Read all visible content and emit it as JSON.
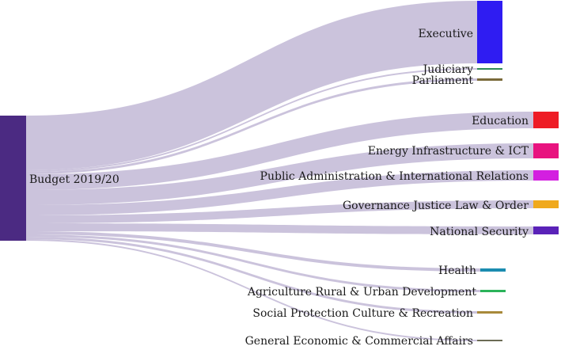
{
  "source": {
    "label": "Budget 2019/20",
    "color": "#4b2a82"
  },
  "targets": [
    {
      "key": "executive",
      "label": "Executive",
      "color": "#2f1cf2"
    },
    {
      "key": "judiciary",
      "label": "Judiciary",
      "color": "#2e8b57"
    },
    {
      "key": "parliament",
      "label": "Parliament",
      "color": "#7a6a3a"
    },
    {
      "key": "education",
      "label": "Education",
      "color": "#ee1c25"
    },
    {
      "key": "energy",
      "label": "Energy Infrastructure & ICT",
      "color": "#e8137f"
    },
    {
      "key": "public-admin",
      "label": "Public Administration & International Relations",
      "color": "#d31fe0"
    },
    {
      "key": "governance",
      "label": "Governance Justice Law & Order",
      "color": "#f0a91c"
    },
    {
      "key": "national-security",
      "label": "National Security",
      "color": "#5a22b8"
    },
    {
      "key": "health",
      "label": "Health",
      "color": "#1b8cb0"
    },
    {
      "key": "agriculture",
      "label": "Agriculture Rural & Urban Development",
      "color": "#2bb35a"
    },
    {
      "key": "social-protection",
      "label": "Social Protection Culture & Recreation",
      "color": "#a8893a"
    },
    {
      "key": "general-economic",
      "label": "General Economic & Commercial Affairs",
      "color": "#6b6b55"
    }
  ]
}
